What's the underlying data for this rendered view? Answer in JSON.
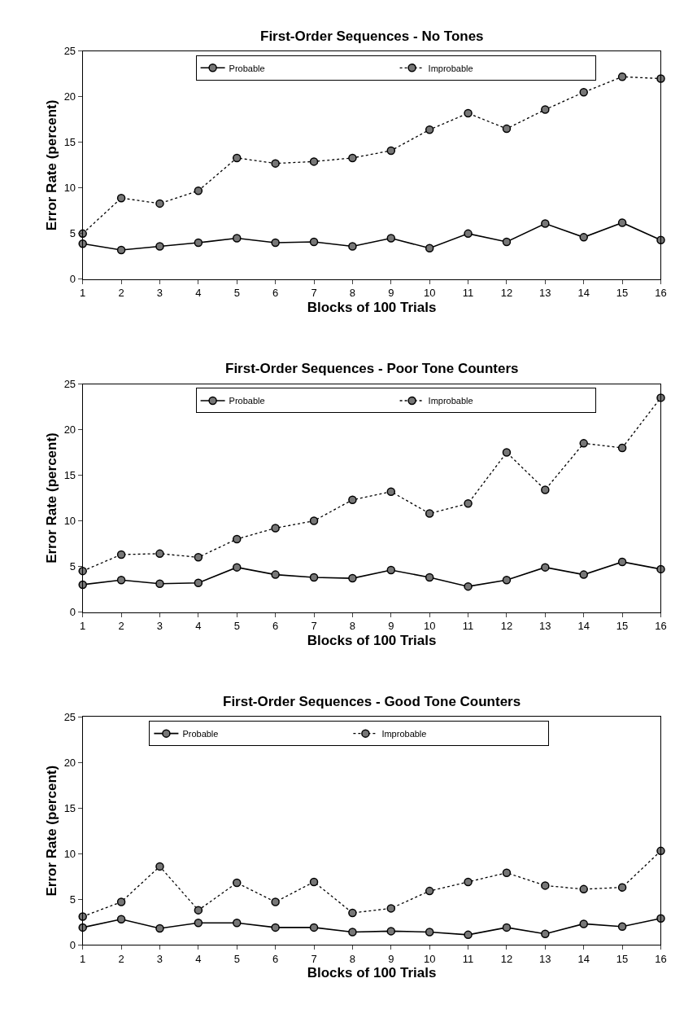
{
  "chart_data": [
    {
      "type": "line",
      "title": "First-Order Sequences - No Tones",
      "xlabel": "Blocks of 100 Trials",
      "ylabel": "Error Rate (percent)",
      "x": [
        1,
        2,
        3,
        4,
        5,
        6,
        7,
        8,
        9,
        10,
        11,
        12,
        13,
        14,
        15,
        16
      ],
      "xlim": [
        1,
        16
      ],
      "xticks": [
        1,
        2,
        3,
        4,
        5,
        6,
        7,
        8,
        9,
        10,
        11,
        12,
        13,
        14,
        15,
        16
      ],
      "ylim": [
        0,
        25
      ],
      "yticks": [
        0,
        5,
        10,
        15,
        20,
        25
      ],
      "grid": false,
      "legend": "top",
      "marker": "circle",
      "series": [
        {
          "name": "Probable",
          "color": "#000000",
          "line_style": "solid",
          "values": [
            3.9,
            3.2,
            3.6,
            4.0,
            4.5,
            4.0,
            4.1,
            3.6,
            4.5,
            3.4,
            5.0,
            4.1,
            6.1,
            4.6,
            6.2,
            4.3
          ]
        },
        {
          "name": "Improbable",
          "color": "#000000",
          "line_style": "dotted",
          "values": [
            5.0,
            8.9,
            8.3,
            9.7,
            13.3,
            12.7,
            12.9,
            13.3,
            14.1,
            16.4,
            18.2,
            16.5,
            18.6,
            20.5,
            22.2,
            22.0
          ]
        }
      ]
    },
    {
      "type": "line",
      "title": "First-Order Sequences - Poor Tone Counters",
      "xlabel": "Blocks of 100 Trials",
      "ylabel": "Error Rate (percent)",
      "x": [
        1,
        2,
        3,
        4,
        5,
        6,
        7,
        8,
        9,
        10,
        11,
        12,
        13,
        14,
        15,
        16
      ],
      "xlim": [
        1,
        16
      ],
      "xticks": [
        1,
        2,
        3,
        4,
        5,
        6,
        7,
        8,
        9,
        10,
        11,
        12,
        13,
        14,
        15,
        16
      ],
      "ylim": [
        0,
        25
      ],
      "yticks": [
        0,
        5,
        10,
        15,
        20,
        25
      ],
      "grid": false,
      "legend": "top",
      "marker": "circle",
      "series": [
        {
          "name": "Probable",
          "color": "#000000",
          "line_style": "solid",
          "values": [
            3.0,
            3.5,
            3.1,
            3.2,
            4.9,
            4.1,
            3.8,
            3.7,
            4.6,
            3.8,
            2.8,
            3.5,
            4.9,
            4.1,
            5.5,
            4.7
          ]
        },
        {
          "name": "Improbable",
          "color": "#000000",
          "line_style": "dotted",
          "values": [
            4.5,
            6.3,
            6.4,
            6.0,
            8.0,
            9.2,
            10.0,
            12.3,
            13.2,
            10.8,
            11.9,
            17.5,
            13.4,
            18.5,
            18.0,
            23.5
          ]
        }
      ]
    },
    {
      "type": "line",
      "title": "First-Order Sequences - Good Tone Counters",
      "xlabel": "Blocks of 100 Trials",
      "ylabel": "Error Rate (percent)",
      "x": [
        1,
        2,
        3,
        4,
        5,
        6,
        7,
        8,
        9,
        10,
        11,
        12,
        13,
        14,
        15,
        16
      ],
      "xlim": [
        1,
        16
      ],
      "xticks": [
        1,
        2,
        3,
        4,
        5,
        6,
        7,
        8,
        9,
        10,
        11,
        12,
        13,
        14,
        15,
        16
      ],
      "ylim": [
        0,
        25
      ],
      "yticks": [
        0,
        5,
        10,
        15,
        20,
        25
      ],
      "grid": false,
      "legend": "top left",
      "marker": "circle",
      "series": [
        {
          "name": "Probable",
          "color": "#000000",
          "line_style": "solid",
          "values": [
            1.9,
            2.8,
            1.8,
            2.4,
            2.4,
            1.9,
            1.9,
            1.4,
            1.5,
            1.4,
            1.1,
            1.9,
            1.2,
            2.3,
            2.0,
            2.9
          ]
        },
        {
          "name": "Improbable",
          "color": "#000000",
          "line_style": "dotted",
          "values": [
            3.1,
            4.7,
            8.6,
            3.8,
            6.8,
            4.7,
            6.9,
            3.5,
            4.0,
            5.9,
            6.9,
            7.9,
            6.5,
            6.1,
            6.3,
            10.3
          ]
        }
      ]
    }
  ]
}
